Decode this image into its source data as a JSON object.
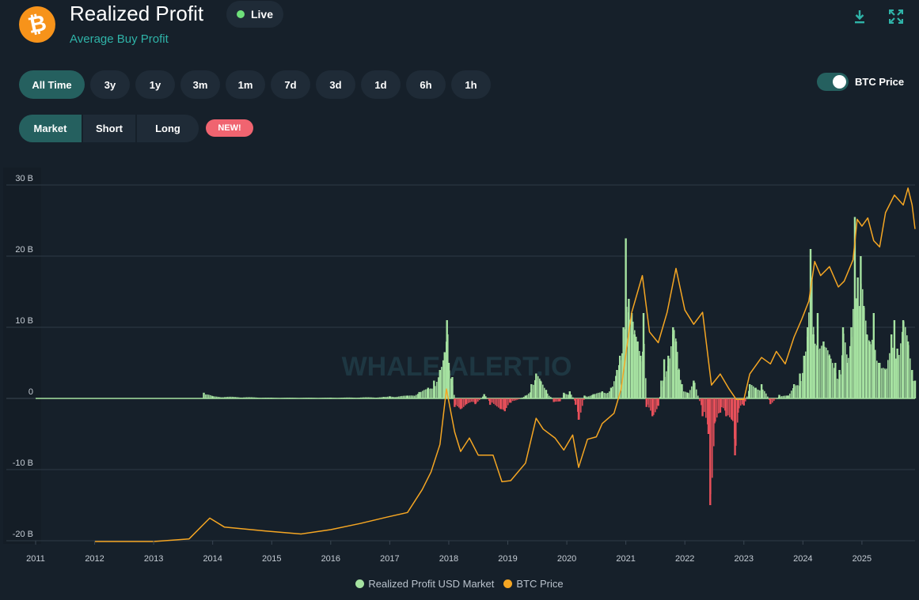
{
  "header": {
    "title": "Realized Profit",
    "subtitle": "Average Buy Profit",
    "live_label": "Live",
    "logo_glyph": "₿"
  },
  "ranges": [
    "All Time",
    "3y",
    "1y",
    "3m",
    "1m",
    "7d",
    "3d",
    "1d",
    "6h",
    "1h"
  ],
  "active_range": "All Time",
  "segments": [
    "Market",
    "Short",
    "Long"
  ],
  "active_segment": "Market",
  "new_badge": "NEW!",
  "toggle": {
    "label": "BTC Price",
    "on": true
  },
  "icons": {
    "download": "download-icon",
    "fullscreen": "fullscreen-icon"
  },
  "colors": {
    "background": "#16202a",
    "accent": "#2fb3a8",
    "profit": "#a6e3a1",
    "loss": "#e8505b",
    "price": "#f5a623"
  },
  "chart_data": {
    "type": "bar",
    "watermark": "WHALE-ALERT.IO",
    "y_ticks": [
      "30 B",
      "20 B",
      "10 B",
      "0",
      "-10 B",
      "-20 B"
    ],
    "y_tick_values": [
      30,
      20,
      10,
      0,
      -10,
      -20
    ],
    "ylim": [
      -20,
      30
    ],
    "x_ticks": [
      "2011",
      "2012",
      "2013",
      "2014",
      "2015",
      "2016",
      "2017",
      "2018",
      "2019",
      "2020",
      "2021",
      "2022",
      "2023",
      "2024",
      "2025"
    ],
    "xlim": [
      2011.0,
      2025.9
    ],
    "grid": true,
    "legend_position": "bottom",
    "series": [
      {
        "name": "Realized Profit USD Market",
        "unit": "B",
        "points": [
          [
            2013.85,
            0.8
          ],
          [
            2014.0,
            0.3
          ],
          [
            2015.0,
            0.1
          ],
          [
            2016.0,
            0.1
          ],
          [
            2016.9,
            0.2
          ],
          [
            2017.0,
            0.3
          ],
          [
            2017.3,
            0.4
          ],
          [
            2017.5,
            0.9
          ],
          [
            2017.65,
            1.5
          ],
          [
            2017.75,
            2.5
          ],
          [
            2017.85,
            4.0
          ],
          [
            2017.93,
            6.5
          ],
          [
            2017.97,
            11.0
          ],
          [
            2018.0,
            5.0
          ],
          [
            2018.06,
            3.0
          ],
          [
            2018.1,
            -1.2
          ],
          [
            2018.2,
            -1.5
          ],
          [
            2018.3,
            -0.8
          ],
          [
            2018.45,
            -0.8
          ],
          [
            2018.6,
            0.6
          ],
          [
            2018.7,
            -0.9
          ],
          [
            2018.88,
            -1.5
          ],
          [
            2018.95,
            -1.8
          ],
          [
            2019.05,
            -0.6
          ],
          [
            2019.3,
            0.4
          ],
          [
            2019.4,
            2.0
          ],
          [
            2019.48,
            3.5
          ],
          [
            2019.55,
            2.5
          ],
          [
            2019.65,
            1.2
          ],
          [
            2019.78,
            -0.5
          ],
          [
            2019.88,
            -0.4
          ],
          [
            2019.95,
            0.8
          ],
          [
            2020.05,
            1.0
          ],
          [
            2020.15,
            -0.9
          ],
          [
            2020.2,
            -3.0
          ],
          [
            2020.3,
            0.4
          ],
          [
            2020.45,
            0.6
          ],
          [
            2020.6,
            1.0
          ],
          [
            2020.75,
            1.5
          ],
          [
            2020.85,
            4.0
          ],
          [
            2020.9,
            6.0
          ],
          [
            2020.96,
            10.0
          ],
          [
            2021.0,
            22.5
          ],
          [
            2021.05,
            14.0
          ],
          [
            2021.1,
            12.0
          ],
          [
            2021.15,
            9.0
          ],
          [
            2021.2,
            8.0
          ],
          [
            2021.25,
            6.0
          ],
          [
            2021.3,
            12.0
          ],
          [
            2021.35,
            -1.2
          ],
          [
            2021.45,
            -2.5
          ],
          [
            2021.55,
            -1.0
          ],
          [
            2021.6,
            2.5
          ],
          [
            2021.65,
            5.5
          ],
          [
            2021.72,
            6.0
          ],
          [
            2021.8,
            10.0
          ],
          [
            2021.85,
            8.0
          ],
          [
            2021.9,
            4.0
          ],
          [
            2021.95,
            2.0
          ],
          [
            2022.05,
            0.8
          ],
          [
            2022.15,
            2.5
          ],
          [
            2022.3,
            -2.5
          ],
          [
            2022.4,
            -5.0
          ],
          [
            2022.43,
            -15.0
          ],
          [
            2022.5,
            -3.5
          ],
          [
            2022.6,
            -2.0
          ],
          [
            2022.7,
            -2.5
          ],
          [
            2022.8,
            -3.0
          ],
          [
            2022.85,
            -8.0
          ],
          [
            2022.9,
            -2.0
          ],
          [
            2023.0,
            -1.0
          ],
          [
            2023.1,
            2.0
          ],
          [
            2023.2,
            1.5
          ],
          [
            2023.3,
            2.0
          ],
          [
            2023.45,
            -0.8
          ],
          [
            2023.6,
            0.5
          ],
          [
            2023.75,
            0.4
          ],
          [
            2023.85,
            2.0
          ],
          [
            2023.95,
            3.5
          ],
          [
            2024.02,
            6.0
          ],
          [
            2024.08,
            10.0
          ],
          [
            2024.13,
            21.0
          ],
          [
            2024.18,
            9.0
          ],
          [
            2024.25,
            12.0
          ],
          [
            2024.35,
            8.0
          ],
          [
            2024.45,
            6.0
          ],
          [
            2024.55,
            5.0
          ],
          [
            2024.62,
            4.0
          ],
          [
            2024.68,
            10.0
          ],
          [
            2024.75,
            5.0
          ],
          [
            2024.82,
            10.0
          ],
          [
            2024.88,
            25.5
          ],
          [
            2024.93,
            17.0
          ],
          [
            2024.98,
            20.0
          ],
          [
            2025.03,
            13.0
          ],
          [
            2025.08,
            9.0
          ],
          [
            2025.13,
            8.0
          ],
          [
            2025.2,
            12.0
          ],
          [
            2025.3,
            5.0
          ],
          [
            2025.4,
            4.0
          ],
          [
            2025.5,
            9.0
          ],
          [
            2025.55,
            11.0
          ],
          [
            2025.6,
            7.0
          ],
          [
            2025.7,
            11.0
          ],
          [
            2025.78,
            8.0
          ],
          [
            2025.85,
            4.0
          ],
          [
            2025.9,
            2.5
          ]
        ]
      },
      {
        "name": "BTC Price",
        "unit": "USD",
        "points": [
          [
            2012.0,
            5
          ],
          [
            2013.0,
            13
          ],
          [
            2013.6,
            100
          ],
          [
            2013.95,
            900
          ],
          [
            2014.2,
            500
          ],
          [
            2014.9,
            350
          ],
          [
            2015.5,
            250
          ],
          [
            2016.0,
            400
          ],
          [
            2016.5,
            650
          ],
          [
            2016.95,
            950
          ],
          [
            2017.3,
            1200
          ],
          [
            2017.55,
            2800
          ],
          [
            2017.7,
            4500
          ],
          [
            2017.85,
            8000
          ],
          [
            2017.96,
            19000
          ],
          [
            2018.1,
            10000
          ],
          [
            2018.2,
            7000
          ],
          [
            2018.35,
            9000
          ],
          [
            2018.5,
            6500
          ],
          [
            2018.75,
            6500
          ],
          [
            2018.9,
            3500
          ],
          [
            2019.05,
            3600
          ],
          [
            2019.3,
            5500
          ],
          [
            2019.48,
            12500
          ],
          [
            2019.6,
            10500
          ],
          [
            2019.8,
            9000
          ],
          [
            2019.95,
            7200
          ],
          [
            2020.1,
            9500
          ],
          [
            2020.2,
            5000
          ],
          [
            2020.35,
            8800
          ],
          [
            2020.5,
            9200
          ],
          [
            2020.6,
            11500
          ],
          [
            2020.8,
            13500
          ],
          [
            2020.92,
            19000
          ],
          [
            2021.0,
            29000
          ],
          [
            2021.1,
            45000
          ],
          [
            2021.28,
            63000
          ],
          [
            2021.4,
            37000
          ],
          [
            2021.55,
            33000
          ],
          [
            2021.7,
            45000
          ],
          [
            2021.85,
            67000
          ],
          [
            2022.0,
            46000
          ],
          [
            2022.15,
            40000
          ],
          [
            2022.3,
            45000
          ],
          [
            2022.45,
            20000
          ],
          [
            2022.6,
            23000
          ],
          [
            2022.75,
            19000
          ],
          [
            2022.87,
            16500
          ],
          [
            2023.0,
            16500
          ],
          [
            2023.1,
            23000
          ],
          [
            2023.3,
            28000
          ],
          [
            2023.45,
            26000
          ],
          [
            2023.55,
            30000
          ],
          [
            2023.7,
            26000
          ],
          [
            2023.85,
            35000
          ],
          [
            2023.98,
            42000
          ],
          [
            2024.1,
            50000
          ],
          [
            2024.2,
            71000
          ],
          [
            2024.3,
            63000
          ],
          [
            2024.45,
            68000
          ],
          [
            2024.6,
            57000
          ],
          [
            2024.7,
            60000
          ],
          [
            2024.85,
            72000
          ],
          [
            2024.92,
            99000
          ],
          [
            2025.0,
            94000
          ],
          [
            2025.1,
            100000
          ],
          [
            2025.2,
            84000
          ],
          [
            2025.3,
            80000
          ],
          [
            2025.4,
            104000
          ],
          [
            2025.55,
            118000
          ],
          [
            2025.7,
            110000
          ],
          [
            2025.78,
            124000
          ],
          [
            2025.85,
            110000
          ],
          [
            2025.9,
            92000
          ]
        ]
      }
    ],
    "legend": [
      "Realized Profit USD Market",
      "BTC Price"
    ]
  }
}
